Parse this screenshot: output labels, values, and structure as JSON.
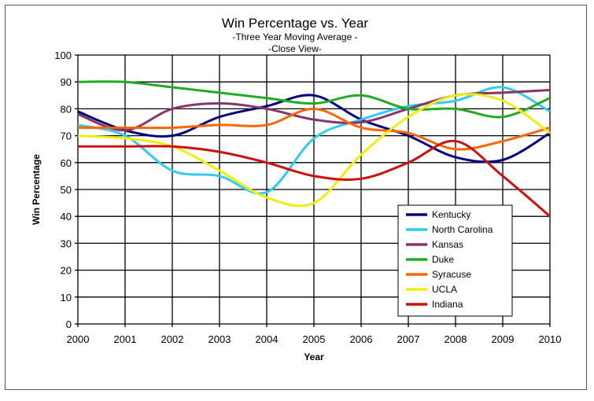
{
  "chart_data": {
    "type": "line",
    "title": "Win Percentage vs. Year",
    "subtitle": "-Three Year Moving Average -",
    "subtitle2": "-Close View-",
    "xlabel": "Year",
    "ylabel": "Win Percentage",
    "xlim": [
      2000,
      2010
    ],
    "ylim": [
      0,
      100
    ],
    "x": [
      2000,
      2001,
      2002,
      2003,
      2004,
      2005,
      2006,
      2007,
      2008,
      2009,
      2010
    ],
    "yticks": [
      "0",
      "10",
      "20",
      "30",
      "40",
      "50",
      "60",
      "70",
      "80",
      "90",
      "100"
    ],
    "xticks": [
      "2000",
      "2001",
      "2002",
      "2003",
      "2004",
      "2005",
      "2006",
      "2007",
      "2008",
      "2009",
      "2010"
    ],
    "grid": true,
    "legend_position": "bottom-right",
    "series": [
      {
        "name": "Kentucky",
        "color": "#00007f",
        "values": [
          79,
          72,
          70,
          77,
          81,
          85,
          76,
          70,
          62,
          61,
          71
        ]
      },
      {
        "name": "North Carolina",
        "color": "#33ccee",
        "values": [
          74,
          70,
          57,
          55,
          49,
          69,
          76,
          81,
          83,
          88,
          79
        ]
      },
      {
        "name": "Kansas",
        "color": "#88336a",
        "values": [
          78,
          72,
          80,
          82,
          80,
          76,
          75,
          80,
          85,
          86,
          87
        ]
      },
      {
        "name": "Duke",
        "color": "#22aa22",
        "values": [
          90,
          90,
          88,
          86,
          84,
          82,
          85,
          80,
          80,
          77,
          84
        ]
      },
      {
        "name": "Syracuse",
        "color": "#ff6600",
        "values": [
          73,
          73,
          73,
          74,
          74,
          80,
          73,
          71,
          65,
          68,
          73
        ]
      },
      {
        "name": "UCLA",
        "color": "#eeee11",
        "values": [
          70,
          69,
          66,
          57,
          47,
          45,
          63,
          77,
          85,
          83,
          71
        ]
      },
      {
        "name": "Indiana",
        "color": "#cc1111",
        "values": [
          66,
          66,
          66,
          64,
          60,
          55,
          54,
          60,
          68,
          55,
          40
        ]
      }
    ]
  }
}
